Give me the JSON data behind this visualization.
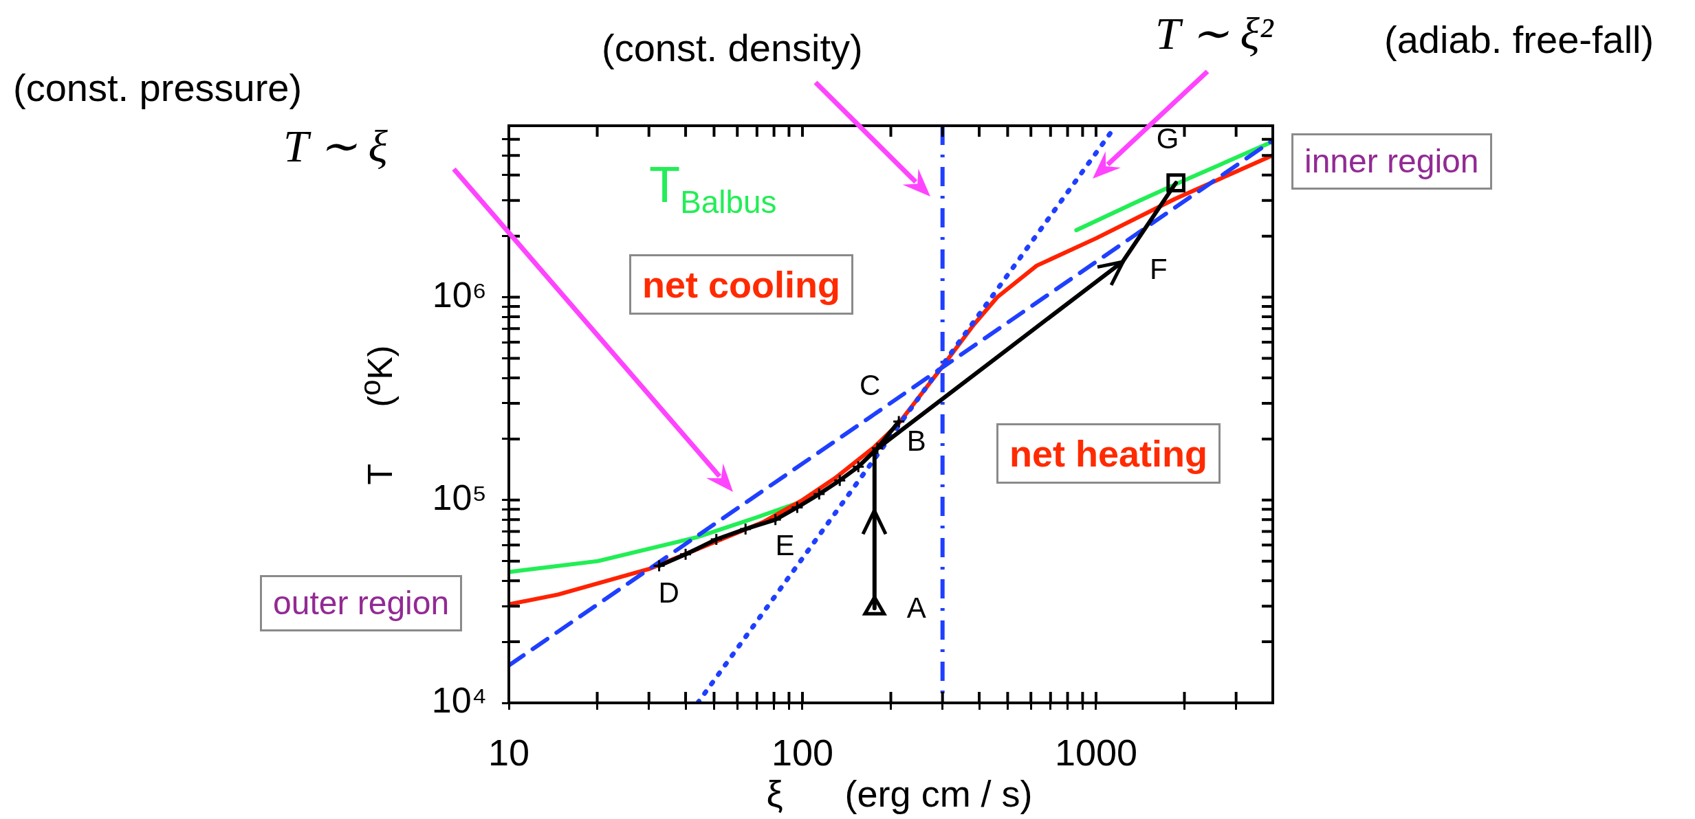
{
  "chart_data": {
    "type": "line",
    "xlabel": "ξ      (erg cm / s)",
    "ylabel": "T      ($^{o}$K)",
    "log": "xy",
    "grid": false,
    "legend": false,
    "xlim": [
      10,
      4000
    ],
    "ylim": [
      10000,
      7000000
    ],
    "xticks": [
      10,
      {
        "value": 20,
        "label": null
      },
      {
        "value": 30,
        "label": null
      },
      {
        "value": 40,
        "label": null
      },
      {
        "value": 50,
        "label": null
      },
      {
        "value": 60,
        "label": null
      },
      {
        "value": 70,
        "label": null
      },
      {
        "value": 80,
        "label": null
      },
      {
        "value": 90,
        "label": null
      },
      100,
      {
        "value": 200,
        "label": null
      },
      {
        "value": 300,
        "label": null
      },
      {
        "value": 400,
        "label": null
      },
      {
        "value": 500,
        "label": null
      },
      {
        "value": 600,
        "label": null
      },
      {
        "value": 700,
        "label": null
      },
      {
        "value": 800,
        "label": null
      },
      {
        "value": 900,
        "label": null
      },
      1000,
      {
        "value": 2000,
        "label": null
      },
      {
        "value": 3000,
        "label": null
      }
    ],
    "yticks": [
      {
        "value": 10000,
        "label": "10⁴"
      },
      {
        "value": 20000,
        "label": null
      },
      {
        "value": 30000,
        "label": null
      },
      {
        "value": 40000,
        "label": null
      },
      {
        "value": 50000,
        "label": null
      },
      {
        "value": 60000,
        "label": null
      },
      {
        "value": 70000,
        "label": null
      },
      {
        "value": 80000,
        "label": null
      },
      {
        "value": 90000,
        "label": null
      },
      {
        "value": 100000,
        "label": "10⁵"
      },
      {
        "value": 200000,
        "label": null
      },
      {
        "value": 300000,
        "label": null
      },
      {
        "value": 400000,
        "label": null
      },
      {
        "value": 500000,
        "label": null
      },
      {
        "value": 600000,
        "label": null
      },
      {
        "value": 700000,
        "label": null
      },
      {
        "value": 800000,
        "label": null
      },
      {
        "value": 900000,
        "label": null
      },
      {
        "value": 1000000,
        "label": "10⁶"
      },
      {
        "value": 2000000,
        "label": null
      },
      {
        "value": 3000000,
        "label": null
      },
      {
        "value": 4000000,
        "label": null
      },
      {
        "value": 5000000,
        "label": null
      },
      {
        "value": 6000000,
        "label": null
      }
    ],
    "series": [
      {
        "name": "T$_{Balbus}$",
        "color": "#22ee55",
        "x": [
          10,
          20.1,
          43.5,
          69.3,
          94.6,
          628,
          857,
          1362,
          1977,
          4000
        ],
        "values": [
          44200,
          50000,
          65400,
          81800,
          95700,
          null,
          2140000,
          2930000,
          3740000,
          5850000
        ]
      },
      {
        "color": "#ff2200",
        "x": [
          10,
          14.7,
          30,
          50.9,
          73.8,
          100,
          129,
          176,
          213,
          290,
          383,
          461,
          628,
          1000,
          1857,
          3990
        ],
        "values": [
          30600,
          34200,
          45700,
          62500,
          78100,
          100000,
          128000,
          183000,
          239000,
          427000,
          731000,
          1000000,
          1430000,
          1950000,
          3050000,
          5000000
        ]
      },
      {
        "color": "#1f3fff",
        "line_style": "dashed",
        "x": [
          10,
          4000
        ],
        "values": [
          15300,
          5930000
        ]
      },
      {
        "color": "#1f3fff",
        "line_style": "dotted",
        "x": [
          44,
          1167
        ],
        "values": [
          10000,
          7000000
        ]
      },
      {
        "color": "#000000",
        "marker": "cross",
        "x": [
          32.5,
          40,
          50.9,
          64,
          80.9,
          96,
          114,
          134,
          155,
          180,
          213
        ],
        "values": [
          47400,
          54000,
          64000,
          72000,
          80000,
          92000,
          107000,
          125000,
          146000,
          180000,
          244000
        ]
      },
      {
        "color": "#000000",
        "x": [
          176,
          176,
          1234,
          1871
        ],
        "values": [
          29300,
          175000,
          1500000,
          3660000
        ]
      },
      {
        "type": "scatter",
        "color": "#000000",
        "marker": "triangle",
        "x": [
          176
        ],
        "values": [
          29300
        ]
      },
      {
        "type": "scatter",
        "color": "#000000",
        "marker": "square",
        "x": [
          1871
        ],
        "values": [
          3660000
        ]
      }
    ],
    "ref_lines": [
      {
        "axis": "x",
        "value": 300,
        "color": "#1f3fff",
        "line_style": "dashdot"
      }
    ],
    "annotations": [
      "(const. pressure)",
      "T ∼ ξ",
      "(const. density)",
      "T ∼ ξ²",
      "(adiab. free-fall)",
      "net cooling",
      "net heating",
      "outer region",
      "inner region",
      {
        "text": "A",
        "x": 176,
        "y": 29300
      },
      {
        "text": "B",
        "x": 176,
        "y": 175000
      },
      {
        "text": "C",
        "x": 213,
        "y": 244000
      },
      {
        "text": "D",
        "x": 32.5,
        "y": 47400
      },
      {
        "text": "E",
        "x": 96,
        "y": 92000
      },
      {
        "text": "F",
        "x": 1234,
        "y": 1500000
      },
      {
        "text": "G",
        "x": 1871,
        "y": 3660000
      }
    ]
  }
}
